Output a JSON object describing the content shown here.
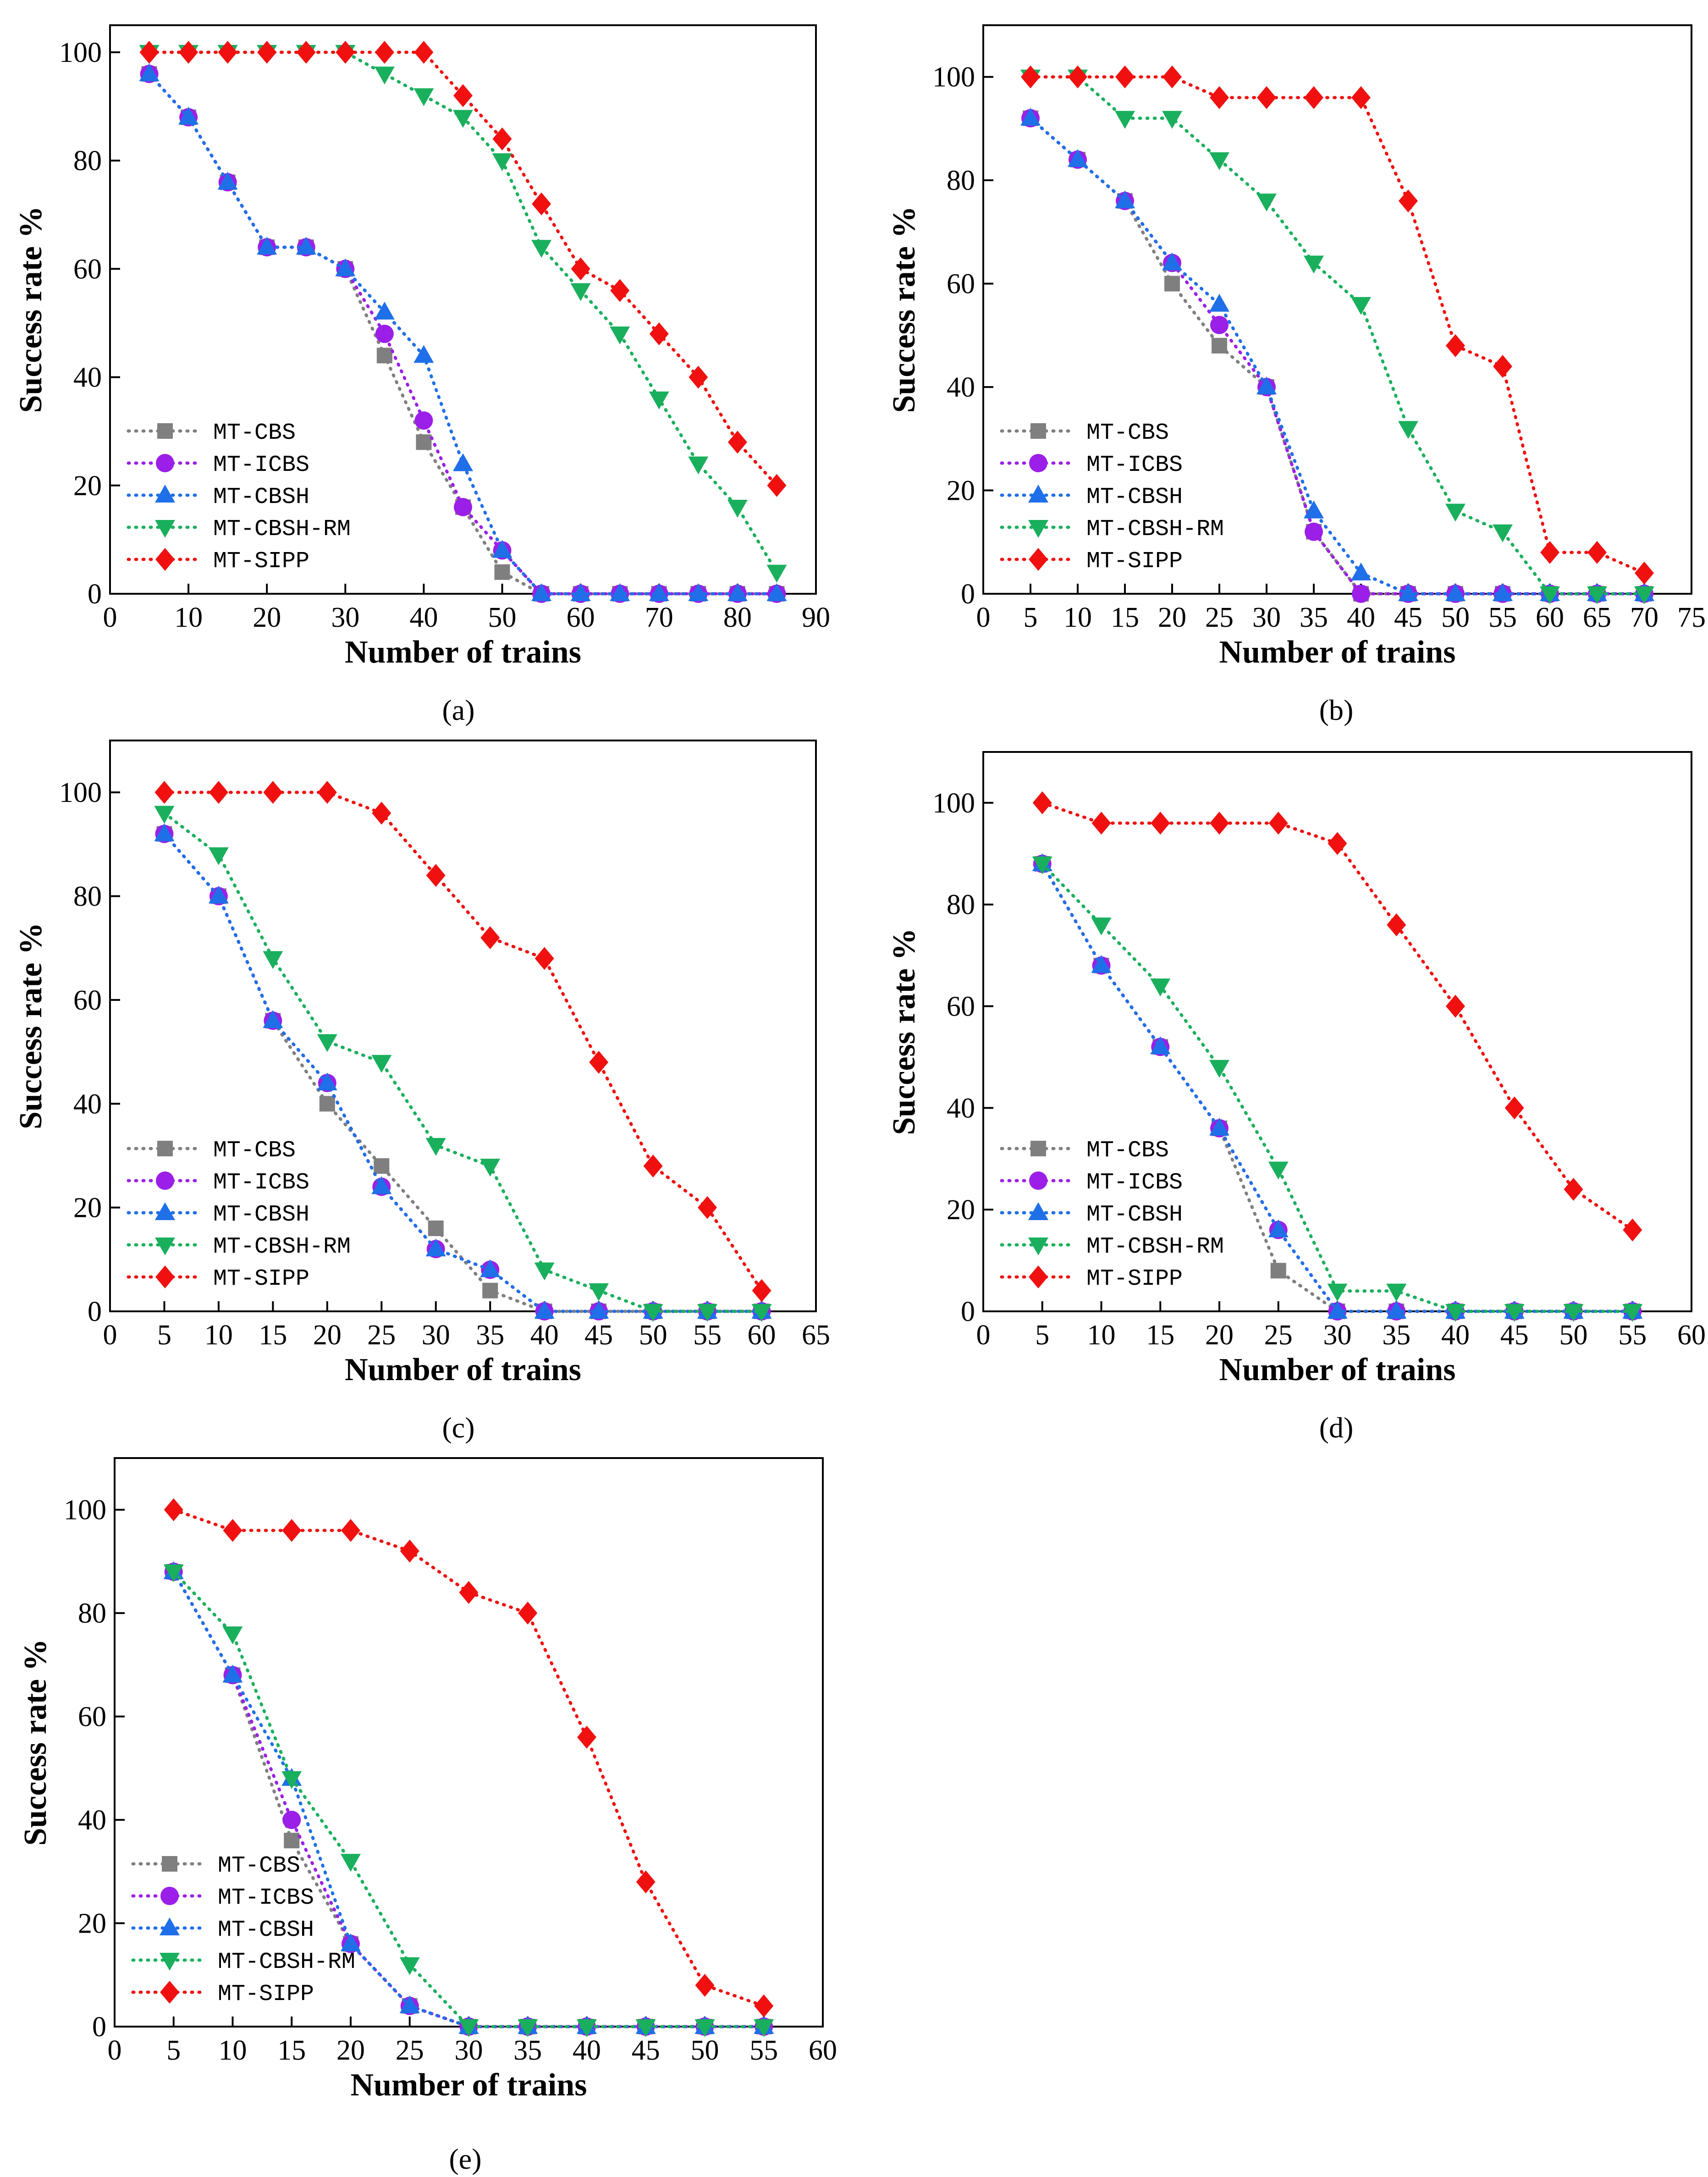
{
  "figure": {
    "series_styles": [
      {
        "name": "MT-CBS",
        "color": "#7f7f7f",
        "marker": "square"
      },
      {
        "name": "MT-ICBS",
        "color": "#9b1fe8",
        "marker": "circle"
      },
      {
        "name": "MT-CBSH",
        "color": "#1f6fe8",
        "marker": "triangle-up"
      },
      {
        "name": "MT-CBSH-RM",
        "color": "#1aaf5d",
        "marker": "triangle-down"
      },
      {
        "name": "MT-SIPP",
        "color": "#f01010",
        "marker": "diamond"
      }
    ]
  },
  "chart_data": [
    {
      "type": "line",
      "panel_label": "(a)",
      "xlabel": "Number of trains",
      "ylabel": "Success rate %",
      "xlim": [
        0,
        90
      ],
      "ylim": [
        0,
        105
      ],
      "xticks": [
        "0",
        "10",
        "20",
        "30",
        "40",
        "50",
        "60",
        "70",
        "80",
        "90"
      ],
      "yticks": [
        "0",
        "20",
        "40",
        "60",
        "80",
        "100"
      ],
      "legend": "lower-left",
      "x": [
        5,
        10,
        15,
        20,
        25,
        30,
        35,
        40,
        45,
        50,
        55,
        60,
        65,
        70,
        75,
        80,
        85
      ],
      "series": [
        {
          "name": "MT-CBS",
          "values": [
            96,
            88,
            76,
            64,
            64,
            60,
            44,
            28,
            16,
            4,
            0,
            0,
            0,
            0,
            0,
            0,
            0
          ]
        },
        {
          "name": "MT-ICBS",
          "values": [
            96,
            88,
            76,
            64,
            64,
            60,
            48,
            32,
            16,
            8,
            0,
            0,
            0,
            0,
            0,
            0,
            0
          ]
        },
        {
          "name": "MT-CBSH",
          "values": [
            96,
            88,
            76,
            64,
            64,
            60,
            52,
            44,
            24,
            8,
            0,
            0,
            0,
            0,
            0,
            0,
            0
          ]
        },
        {
          "name": "MT-CBSH-RM",
          "values": [
            100,
            100,
            100,
            100,
            100,
            100,
            96,
            92,
            88,
            80,
            64,
            56,
            48,
            36,
            24,
            16,
            4
          ]
        },
        {
          "name": "MT-SIPP",
          "values": [
            100,
            100,
            100,
            100,
            100,
            100,
            100,
            100,
            92,
            84,
            72,
            60,
            56,
            48,
            40,
            28,
            20
          ]
        }
      ]
    },
    {
      "type": "line",
      "panel_label": "(b)",
      "xlabel": "Number of trains",
      "ylabel": "Success rate %",
      "xlim": [
        0,
        75
      ],
      "ylim": [
        0,
        110
      ],
      "xticks": [
        "0",
        "5",
        "10",
        "15",
        "20",
        "25",
        "30",
        "35",
        "40",
        "45",
        "50",
        "55",
        "60",
        "65",
        "70",
        "75"
      ],
      "yticks": [
        "0",
        "20",
        "40",
        "60",
        "80",
        "100"
      ],
      "legend": "lower-left",
      "x": [
        5,
        10,
        15,
        20,
        25,
        30,
        35,
        40,
        45,
        50,
        55,
        60,
        65,
        70
      ],
      "series": [
        {
          "name": "MT-CBS",
          "values": [
            92,
            84,
            76,
            60,
            48,
            40,
            12,
            0,
            0,
            0,
            0,
            0,
            0,
            0
          ]
        },
        {
          "name": "MT-ICBS",
          "values": [
            92,
            84,
            76,
            64,
            52,
            40,
            12,
            0,
            0,
            0,
            0,
            0,
            0,
            0
          ]
        },
        {
          "name": "MT-CBSH",
          "values": [
            92,
            84,
            76,
            64,
            56,
            40,
            16,
            4,
            0,
            0,
            0,
            0,
            0,
            0
          ]
        },
        {
          "name": "MT-CBSH-RM",
          "values": [
            100,
            100,
            92,
            92,
            84,
            76,
            64,
            56,
            32,
            16,
            12,
            0,
            0,
            0
          ]
        },
        {
          "name": "MT-SIPP",
          "values": [
            100,
            100,
            100,
            100,
            96,
            96,
            96,
            96,
            76,
            48,
            44,
            8,
            8,
            4
          ]
        }
      ]
    },
    {
      "type": "line",
      "panel_label": "(c)",
      "xlabel": "Number of trains",
      "ylabel": "Success rate %",
      "xlim": [
        0,
        65
      ],
      "ylim": [
        0,
        110
      ],
      "xticks": [
        "0",
        "5",
        "10",
        "15",
        "20",
        "25",
        "30",
        "35",
        "40",
        "45",
        "50",
        "55",
        "60",
        "65"
      ],
      "yticks": [
        "0",
        "20",
        "40",
        "60",
        "80",
        "100"
      ],
      "legend": "lower-left",
      "x": [
        5,
        10,
        15,
        20,
        25,
        30,
        35,
        40,
        45,
        50,
        55,
        60
      ],
      "series": [
        {
          "name": "MT-CBS",
          "values": [
            92,
            80,
            56,
            40,
            28,
            16,
            4,
            0,
            0,
            0,
            0,
            0
          ]
        },
        {
          "name": "MT-ICBS",
          "values": [
            92,
            80,
            56,
            44,
            24,
            12,
            8,
            0,
            0,
            0,
            0,
            0
          ]
        },
        {
          "name": "MT-CBSH",
          "values": [
            92,
            80,
            56,
            44,
            24,
            12,
            8,
            0,
            0,
            0,
            0,
            0
          ]
        },
        {
          "name": "MT-CBSH-RM",
          "values": [
            96,
            88,
            68,
            52,
            48,
            32,
            28,
            8,
            4,
            0,
            0,
            0
          ]
        },
        {
          "name": "MT-SIPP",
          "values": [
            100,
            100,
            100,
            100,
            96,
            84,
            72,
            68,
            48,
            28,
            20,
            4
          ]
        }
      ]
    },
    {
      "type": "line",
      "panel_label": "(d)",
      "xlabel": "Number of trains",
      "ylabel": "Success rate %",
      "xlim": [
        0,
        60
      ],
      "ylim": [
        0,
        110
      ],
      "xticks": [
        "0",
        "5",
        "10",
        "15",
        "20",
        "25",
        "30",
        "35",
        "40",
        "45",
        "50",
        "55",
        "60"
      ],
      "yticks": [
        "0",
        "20",
        "40",
        "60",
        "80",
        "100"
      ],
      "legend": "lower-left",
      "x": [
        5,
        10,
        15,
        20,
        25,
        30,
        35,
        40,
        45,
        50,
        55
      ],
      "series": [
        {
          "name": "MT-CBS",
          "values": [
            88,
            68,
            52,
            36,
            8,
            0,
            0,
            0,
            0,
            0,
            0
          ]
        },
        {
          "name": "MT-ICBS",
          "values": [
            88,
            68,
            52,
            36,
            16,
            0,
            0,
            0,
            0,
            0,
            0
          ]
        },
        {
          "name": "MT-CBSH",
          "values": [
            88,
            68,
            52,
            36,
            16,
            0,
            0,
            0,
            0,
            0,
            0
          ]
        },
        {
          "name": "MT-CBSH-RM",
          "values": [
            88,
            76,
            64,
            48,
            28,
            4,
            4,
            0,
            0,
            0,
            0
          ]
        },
        {
          "name": "MT-SIPP",
          "values": [
            100,
            96,
            96,
            96,
            96,
            92,
            76,
            60,
            40,
            24,
            16
          ]
        }
      ]
    },
    {
      "type": "line",
      "panel_label": "(e)",
      "xlabel": "Number of trains",
      "ylabel": "Success rate %",
      "xlim": [
        0,
        60
      ],
      "ylim": [
        0,
        110
      ],
      "xticks": [
        "0",
        "5",
        "10",
        "15",
        "20",
        "25",
        "30",
        "35",
        "40",
        "45",
        "50",
        "55",
        "60"
      ],
      "yticks": [
        "0",
        "20",
        "40",
        "60",
        "80",
        "100"
      ],
      "legend": "lower-left",
      "x": [
        5,
        10,
        15,
        20,
        25,
        30,
        35,
        40,
        45,
        50,
        55
      ],
      "series": [
        {
          "name": "MT-CBS",
          "values": [
            88,
            68,
            36,
            16,
            4,
            0,
            0,
            0,
            0,
            0,
            0
          ]
        },
        {
          "name": "MT-ICBS",
          "values": [
            88,
            68,
            40,
            16,
            4,
            0,
            0,
            0,
            0,
            0,
            0
          ]
        },
        {
          "name": "MT-CBSH",
          "values": [
            88,
            68,
            48,
            16,
            4,
            0,
            0,
            0,
            0,
            0,
            0
          ]
        },
        {
          "name": "MT-CBSH-RM",
          "values": [
            88,
            76,
            48,
            32,
            12,
            0,
            0,
            0,
            0,
            0,
            0
          ]
        },
        {
          "name": "MT-SIPP",
          "values": [
            100,
            96,
            96,
            96,
            92,
            84,
            80,
            56,
            28,
            8,
            4
          ]
        }
      ]
    }
  ]
}
